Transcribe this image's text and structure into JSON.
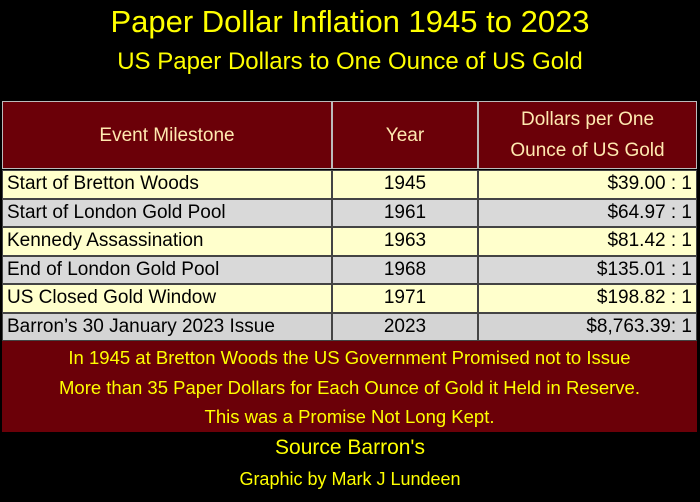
{
  "header": {
    "title": "Paper Dollar Inflation 1945 to 2023",
    "subtitle": "US Paper Dollars to One Ounce of US Gold"
  },
  "table": {
    "columns": [
      "Event Milestone",
      "Year",
      [
        "Dollars per One",
        "Ounce of US Gold"
      ]
    ],
    "rows": [
      [
        "Start of Bretton Woods",
        1945,
        "$39.00 : 1"
      ],
      [
        "Start of London Gold Pool",
        1961,
        "$64.97 : 1"
      ],
      [
        "Kennedy Assassination",
        1963,
        "$81.42 : 1"
      ],
      [
        "End of London Gold Pool",
        1968,
        "$135.01 : 1"
      ],
      [
        "US Closed Gold Window",
        1971,
        "$198.82 : 1"
      ],
      [
        "Barron’s 30 January 2023 Issue",
        2023,
        "$8,763.39: 1"
      ]
    ]
  },
  "note": {
    "lines": [
      "In 1945 at Bretton Woods the US Government Promised not to Issue",
      "More than 35 Paper Dollars for Each Ounce of Gold it Held in Reserve.",
      "This was a Promise Not Long Kept."
    ]
  },
  "footer": {
    "source": "Source Barron's",
    "credit": "Graphic by Mark J Lundeen"
  }
}
